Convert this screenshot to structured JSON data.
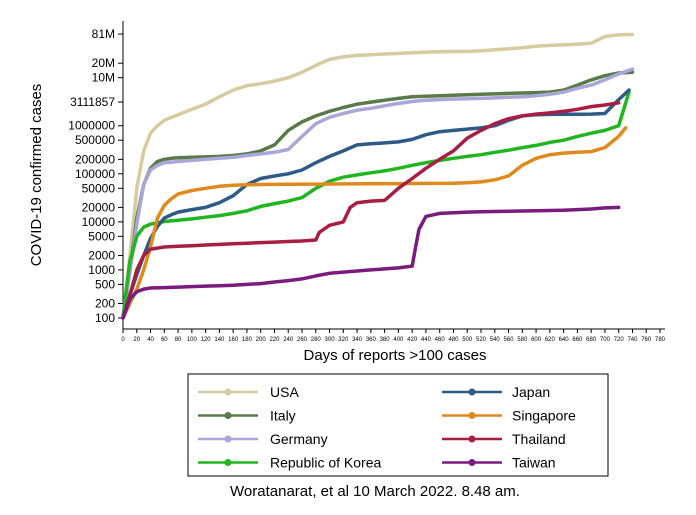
{
  "chart_data": {
    "type": "line",
    "title": "",
    "xlabel": "Days of reports >100 cases",
    "ylabel": "COVID-19 confirmed cases",
    "yscale": "log",
    "xlim": [
      0,
      780
    ],
    "ylim": [
      80,
      100000000
    ],
    "grid": "none",
    "legend_position": "bottom",
    "x_ticks": [
      0,
      20,
      40,
      60,
      80,
      100,
      120,
      140,
      160,
      180,
      200,
      220,
      240,
      260,
      280,
      300,
      320,
      340,
      360,
      380,
      400,
      420,
      440,
      460,
      480,
      500,
      520,
      540,
      560,
      580,
      600,
      620,
      640,
      660,
      680,
      700,
      720,
      740,
      760,
      780
    ],
    "y_ticks": [
      {
        "value": 100,
        "label": "100"
      },
      {
        "value": 200,
        "label": "200"
      },
      {
        "value": 500,
        "label": "500"
      },
      {
        "value": 1000,
        "label": "1000"
      },
      {
        "value": 2000,
        "label": "2000"
      },
      {
        "value": 5000,
        "label": "5000"
      },
      {
        "value": 10000,
        "label": "10000"
      },
      {
        "value": 20000,
        "label": "20000"
      },
      {
        "value": 50000,
        "label": "50000"
      },
      {
        "value": 100000,
        "label": "100000"
      },
      {
        "value": 200000,
        "label": "200000"
      },
      {
        "value": 500000,
        "label": "500000"
      },
      {
        "value": 1000000,
        "label": "1000000"
      },
      {
        "value": 3111857,
        "label": "3111857"
      },
      {
        "value": 10000000,
        "label": "10M"
      },
      {
        "value": 20000000,
        "label": "20M"
      },
      {
        "value": 81000000,
        "label": "81M"
      }
    ],
    "series": [
      {
        "name": "USA",
        "color": "#d6cc9f",
        "x": [
          0,
          10,
          20,
          30,
          40,
          50,
          60,
          80,
          100,
          120,
          140,
          160,
          180,
          200,
          220,
          240,
          260,
          280,
          300,
          320,
          340,
          360,
          380,
          400,
          420,
          440,
          460,
          480,
          500,
          520,
          540,
          560,
          580,
          600,
          620,
          640,
          660,
          680,
          700,
          720,
          740
        ],
        "y": [
          100,
          2000,
          50000,
          300000,
          700000,
          1000000,
          1300000,
          1700000,
          2200000,
          2800000,
          4000000,
          5500000,
          6800000,
          7500000,
          8500000,
          10000000,
          13000000,
          18000000,
          24000000,
          27000000,
          29000000,
          30000000,
          31000000,
          32000000,
          33000000,
          34000000,
          34500000,
          35000000,
          35000000,
          36000000,
          38000000,
          40000000,
          42000000,
          45000000,
          47000000,
          48000000,
          50000000,
          52000000,
          72000000,
          78000000,
          79000000
        ]
      },
      {
        "name": "Italy",
        "color": "#5a7a4a",
        "x": [
          0,
          10,
          20,
          30,
          40,
          50,
          60,
          70,
          80,
          100,
          120,
          140,
          160,
          180,
          200,
          220,
          240,
          260,
          280,
          300,
          320,
          340,
          360,
          380,
          400,
          420,
          440,
          460,
          480,
          500,
          520,
          540,
          560,
          580,
          600,
          620,
          640,
          660,
          680,
          700,
          720,
          740
        ],
        "y": [
          100,
          1000,
          12000,
          60000,
          130000,
          180000,
          200000,
          210000,
          215000,
          220000,
          225000,
          230000,
          240000,
          260000,
          300000,
          400000,
          800000,
          1200000,
          1600000,
          2000000,
          2400000,
          2800000,
          3100000,
          3400000,
          3700000,
          4000000,
          4100000,
          4200000,
          4300000,
          4400000,
          4500000,
          4600000,
          4700000,
          4800000,
          4900000,
          5000000,
          5500000,
          7000000,
          9000000,
          11000000,
          12500000,
          13000000
        ]
      },
      {
        "name": "Germany",
        "color": "#a9a6d9",
        "x": [
          0,
          10,
          20,
          30,
          40,
          50,
          60,
          80,
          100,
          120,
          140,
          160,
          180,
          200,
          220,
          240,
          260,
          280,
          300,
          320,
          340,
          360,
          380,
          400,
          420,
          440,
          460,
          480,
          500,
          520,
          540,
          560,
          580,
          600,
          620,
          640,
          660,
          680,
          700,
          720,
          740
        ],
        "y": [
          100,
          900,
          9000,
          60000,
          120000,
          150000,
          170000,
          180000,
          190000,
          200000,
          210000,
          220000,
          240000,
          260000,
          280000,
          320000,
          600000,
          1100000,
          1500000,
          1800000,
          2100000,
          2300000,
          2600000,
          2900000,
          3200000,
          3400000,
          3500000,
          3600000,
          3650000,
          3700000,
          3800000,
          3900000,
          4000000,
          4200000,
          4500000,
          5000000,
          6000000,
          7000000,
          9000000,
          12000000,
          15000000
        ]
      },
      {
        "name": "Republic of Korea",
        "color": "#22b522",
        "x": [
          0,
          5,
          10,
          20,
          30,
          40,
          60,
          80,
          100,
          120,
          140,
          160,
          180,
          200,
          220,
          240,
          260,
          280,
          300,
          320,
          340,
          360,
          380,
          400,
          420,
          440,
          460,
          480,
          500,
          520,
          540,
          560,
          580,
          600,
          620,
          640,
          660,
          680,
          700,
          720,
          735
        ],
        "y": [
          100,
          400,
          1500,
          5000,
          7800,
          9000,
          10200,
          10800,
          11500,
          12500,
          13500,
          15000,
          17000,
          21000,
          24000,
          27000,
          32000,
          50000,
          70000,
          85000,
          95000,
          105000,
          115000,
          130000,
          150000,
          170000,
          190000,
          210000,
          230000,
          250000,
          280000,
          310000,
          350000,
          390000,
          450000,
          500000,
          600000,
          700000,
          800000,
          1000000,
          5000000
        ]
      },
      {
        "name": "Japan",
        "color": "#2e5a87",
        "x": [
          0,
          10,
          20,
          30,
          40,
          50,
          60,
          70,
          80,
          100,
          120,
          140,
          160,
          180,
          200,
          220,
          240,
          260,
          280,
          300,
          320,
          340,
          360,
          380,
          400,
          420,
          440,
          460,
          480,
          500,
          520,
          540,
          560,
          580,
          600,
          620,
          640,
          660,
          680,
          700,
          720,
          735
        ],
        "y": [
          100,
          300,
          800,
          2000,
          4500,
          8000,
          12000,
          14000,
          16000,
          18000,
          20000,
          25000,
          35000,
          60000,
          80000,
          90000,
          100000,
          120000,
          170000,
          230000,
          300000,
          400000,
          420000,
          440000,
          460000,
          520000,
          650000,
          750000,
          800000,
          850000,
          900000,
          1000000,
          1300000,
          1600000,
          1700000,
          1720000,
          1730000,
          1740000,
          1750000,
          1800000,
          3500000,
          5500000
        ]
      },
      {
        "name": "Singapore",
        "color": "#e08a1e",
        "x": [
          0,
          10,
          20,
          30,
          40,
          50,
          60,
          70,
          80,
          100,
          120,
          140,
          160,
          180,
          200,
          240,
          280,
          320,
          360,
          400,
          440,
          480,
          500,
          520,
          540,
          560,
          580,
          600,
          620,
          640,
          660,
          680,
          700,
          720,
          730
        ],
        "y": [
          100,
          200,
          400,
          1000,
          3000,
          12000,
          22000,
          30000,
          38000,
          45000,
          50000,
          55000,
          58000,
          59000,
          60000,
          60500,
          61000,
          61500,
          62000,
          62500,
          63000,
          63500,
          65000,
          68000,
          75000,
          90000,
          150000,
          210000,
          250000,
          270000,
          280000,
          290000,
          350000,
          600000,
          900000
        ]
      },
      {
        "name": "Thailand",
        "color": "#a81e42",
        "x": [
          0,
          10,
          20,
          30,
          40,
          60,
          80,
          100,
          120,
          140,
          160,
          180,
          200,
          220,
          240,
          260,
          280,
          285,
          300,
          320,
          330,
          340,
          360,
          380,
          400,
          420,
          440,
          460,
          480,
          500,
          520,
          540,
          560,
          580,
          600,
          620,
          640,
          660,
          680,
          700,
          720
        ],
        "y": [
          100,
          300,
          1000,
          2000,
          2700,
          3000,
          3100,
          3200,
          3300,
          3400,
          3500,
          3600,
          3700,
          3800,
          3900,
          4000,
          4200,
          6000,
          8500,
          10000,
          20000,
          25000,
          27000,
          28000,
          50000,
          80000,
          130000,
          200000,
          300000,
          550000,
          800000,
          1100000,
          1400000,
          1600000,
          1750000,
          1850000,
          2000000,
          2200000,
          2500000,
          2700000,
          3000000
        ]
      },
      {
        "name": "Taiwan",
        "color": "#7a1b7e",
        "x": [
          0,
          10,
          20,
          30,
          40,
          60,
          80,
          100,
          120,
          140,
          160,
          180,
          200,
          220,
          240,
          260,
          280,
          300,
          320,
          340,
          360,
          380,
          400,
          410,
          420,
          425,
          430,
          440,
          460,
          480,
          500,
          520,
          540,
          560,
          580,
          600,
          620,
          640,
          660,
          680,
          700,
          720
        ],
        "y": [
          100,
          250,
          350,
          400,
          420,
          430,
          440,
          450,
          460,
          470,
          480,
          500,
          520,
          560,
          600,
          650,
          750,
          850,
          900,
          950,
          1000,
          1050,
          1100,
          1150,
          1200,
          3000,
          7000,
          13000,
          15000,
          15500,
          16000,
          16200,
          16400,
          16600,
          16800,
          17000,
          17200,
          17500,
          18000,
          18500,
          19500,
          20000
        ]
      }
    ]
  },
  "credit_line": "Woratanarat, et al 10 March 2022. 8.48 am."
}
